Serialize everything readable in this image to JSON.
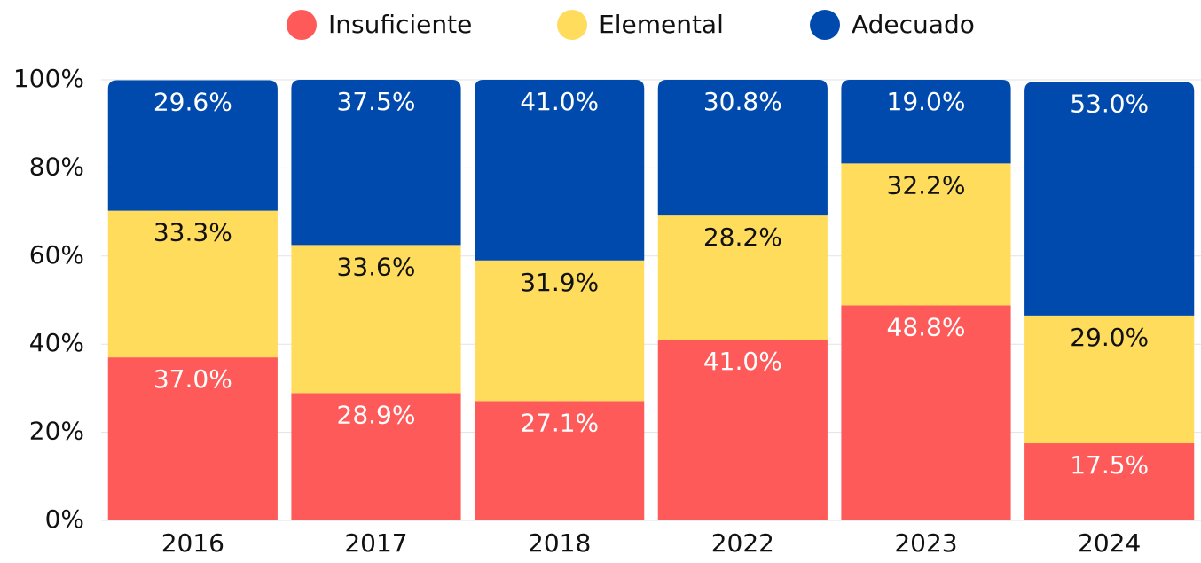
{
  "chart_data": {
    "type": "stacked_bar",
    "categories": [
      "2016",
      "2017",
      "2018",
      "2022",
      "2023",
      "2024"
    ],
    "series": [
      {
        "name": "Insuficiente",
        "color": "#ff5a5a",
        "values": [
          37.0,
          28.9,
          27.1,
          41.0,
          48.8,
          17.5
        ],
        "value_labels": [
          "37.0%",
          "28.9%",
          "27.1%",
          "41.0%",
          "48.8%",
          "17.5%"
        ]
      },
      {
        "name": "Elemental",
        "color": "#ffdc5c",
        "values": [
          33.3,
          33.6,
          31.9,
          28.2,
          32.2,
          29.0
        ],
        "value_labels": [
          "33.3%",
          "33.6%",
          "31.9%",
          "28.2%",
          "32.2%",
          "29.0%"
        ]
      },
      {
        "name": "Adecuado",
        "color": "#004aad",
        "values": [
          29.6,
          37.5,
          41.0,
          30.8,
          19.0,
          53.0
        ],
        "value_labels": [
          "29.6%",
          "37.5%",
          "41.0%",
          "30.8%",
          "19.0%",
          "53.0%"
        ]
      }
    ],
    "ylim": [
      0,
      100
    ],
    "yticks": [
      {
        "value": 0,
        "label": "0%"
      },
      {
        "value": 20,
        "label": "20%"
      },
      {
        "value": 40,
        "label": "40%"
      },
      {
        "value": 60,
        "label": "60%"
      },
      {
        "value": 80,
        "label": "80%"
      },
      {
        "value": 100,
        "label": "100%"
      }
    ],
    "grid": true,
    "legend": "top"
  }
}
